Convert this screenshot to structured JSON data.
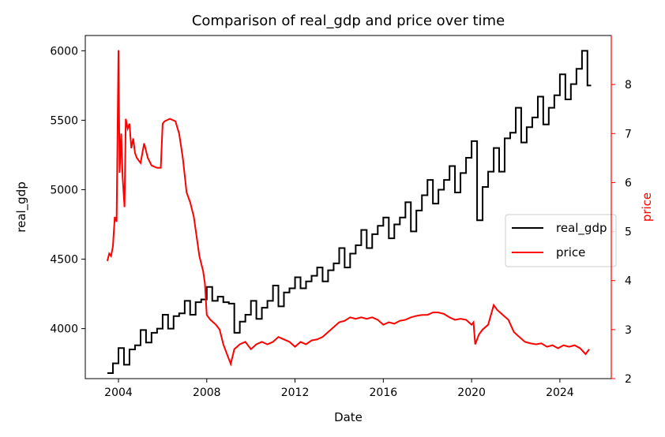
{
  "chart_data": {
    "type": "line",
    "title": "Comparison of real_gdp and price over time",
    "xlabel": "Date",
    "ylabel_left": "real_gdp",
    "ylabel_right": "price",
    "x_range": [
      "2002-07-01",
      "2026-05-01"
    ],
    "ylim_left": [
      3640,
      6110
    ],
    "ylim_right": [
      2.0,
      9.0
    ],
    "x_ticks": [
      "2004",
      "2008",
      "2012",
      "2016",
      "2020",
      "2024"
    ],
    "y_left_ticks": [
      4000,
      4500,
      5000,
      5500,
      6000
    ],
    "y_right_ticks": [
      2,
      3,
      4,
      5,
      6,
      7,
      8
    ],
    "grid": false,
    "legend_position": "center-right",
    "colors": {
      "real_gdp": "#000000",
      "price": "#ff0000",
      "right_axis": "#ff0000"
    },
    "series": [
      {
        "name": "real_gdp",
        "axis": "left",
        "color": "#000000",
        "step": true,
        "points": [
          [
            "2003-07-01",
            3680
          ],
          [
            "2003-10-01",
            3750
          ],
          [
            "2004-01-01",
            3860
          ],
          [
            "2004-04-01",
            3740
          ],
          [
            "2004-07-01",
            3850
          ],
          [
            "2004-10-01",
            3880
          ],
          [
            "2005-01-01",
            3990
          ],
          [
            "2005-04-01",
            3900
          ],
          [
            "2005-07-01",
            3970
          ],
          [
            "2005-10-01",
            4000
          ],
          [
            "2006-01-01",
            4100
          ],
          [
            "2006-04-01",
            4000
          ],
          [
            "2006-07-01",
            4090
          ],
          [
            "2006-10-01",
            4110
          ],
          [
            "2007-01-01",
            4200
          ],
          [
            "2007-04-01",
            4100
          ],
          [
            "2007-07-01",
            4190
          ],
          [
            "2007-10-01",
            4210
          ],
          [
            "2008-01-01",
            4300
          ],
          [
            "2008-04-01",
            4200
          ],
          [
            "2008-07-01",
            4230
          ],
          [
            "2008-10-01",
            4190
          ],
          [
            "2009-01-01",
            4180
          ],
          [
            "2009-04-01",
            3970
          ],
          [
            "2009-07-01",
            4050
          ],
          [
            "2009-10-01",
            4100
          ],
          [
            "2010-01-01",
            4200
          ],
          [
            "2010-04-01",
            4070
          ],
          [
            "2010-07-01",
            4150
          ],
          [
            "2010-10-01",
            4200
          ],
          [
            "2011-01-01",
            4310
          ],
          [
            "2011-04-01",
            4160
          ],
          [
            "2011-07-01",
            4260
          ],
          [
            "2011-10-01",
            4290
          ],
          [
            "2012-01-01",
            4370
          ],
          [
            "2012-04-01",
            4290
          ],
          [
            "2012-07-01",
            4340
          ],
          [
            "2012-10-01",
            4380
          ],
          [
            "2013-01-01",
            4440
          ],
          [
            "2013-04-01",
            4340
          ],
          [
            "2013-07-01",
            4420
          ],
          [
            "2013-10-01",
            4470
          ],
          [
            "2014-01-01",
            4580
          ],
          [
            "2014-04-01",
            4440
          ],
          [
            "2014-07-01",
            4540
          ],
          [
            "2014-10-01",
            4600
          ],
          [
            "2015-01-01",
            4710
          ],
          [
            "2015-04-01",
            4580
          ],
          [
            "2015-07-01",
            4680
          ],
          [
            "2015-10-01",
            4740
          ],
          [
            "2016-01-01",
            4800
          ],
          [
            "2016-04-01",
            4650
          ],
          [
            "2016-07-01",
            4750
          ],
          [
            "2016-10-01",
            4800
          ],
          [
            "2017-01-01",
            4910
          ],
          [
            "2017-04-01",
            4700
          ],
          [
            "2017-07-01",
            4850
          ],
          [
            "2017-10-01",
            4960
          ],
          [
            "2018-01-01",
            5070
          ],
          [
            "2018-04-01",
            4900
          ],
          [
            "2018-07-01",
            5000
          ],
          [
            "2018-10-01",
            5070
          ],
          [
            "2019-01-01",
            5170
          ],
          [
            "2019-04-01",
            4980
          ],
          [
            "2019-07-01",
            5120
          ],
          [
            "2019-10-01",
            5230
          ],
          [
            "2020-01-01",
            5350
          ],
          [
            "2020-04-01",
            4780
          ],
          [
            "2020-07-01",
            5020
          ],
          [
            "2020-10-01",
            5130
          ],
          [
            "2021-01-01",
            5300
          ],
          [
            "2021-04-01",
            5130
          ],
          [
            "2021-07-01",
            5370
          ],
          [
            "2021-10-01",
            5410
          ],
          [
            "2022-01-01",
            5590
          ],
          [
            "2022-04-01",
            5340
          ],
          [
            "2022-07-01",
            5450
          ],
          [
            "2022-10-01",
            5520
          ],
          [
            "2023-01-01",
            5670
          ],
          [
            "2023-04-01",
            5470
          ],
          [
            "2023-07-01",
            5590
          ],
          [
            "2023-10-01",
            5680
          ],
          [
            "2024-01-01",
            5830
          ],
          [
            "2024-04-01",
            5650
          ],
          [
            "2024-07-01",
            5760
          ],
          [
            "2024-10-01",
            5870
          ],
          [
            "2025-01-01",
            6000
          ],
          [
            "2025-04-01",
            5750
          ],
          [
            "2025-06-01",
            5750
          ]
        ]
      },
      {
        "name": "price",
        "axis": "right",
        "color": "#ff0000",
        "step": false,
        "points": [
          [
            "2003-07-01",
            4.4
          ],
          [
            "2003-08-01",
            4.55
          ],
          [
            "2003-09-01",
            4.5
          ],
          [
            "2003-10-01",
            4.7
          ],
          [
            "2003-11-01",
            5.3
          ],
          [
            "2003-12-01",
            5.2
          ],
          [
            "2004-01-01",
            8.7
          ],
          [
            "2004-01-20",
            6.2
          ],
          [
            "2004-02-15",
            7.0
          ],
          [
            "2004-03-10",
            6.1
          ],
          [
            "2004-04-10",
            5.5
          ],
          [
            "2004-05-01",
            7.3
          ],
          [
            "2004-06-01",
            7.1
          ],
          [
            "2004-07-01",
            7.2
          ],
          [
            "2004-08-01",
            6.7
          ],
          [
            "2004-09-01",
            6.9
          ],
          [
            "2004-10-01",
            6.6
          ],
          [
            "2004-11-01",
            6.5
          ],
          [
            "2005-01-01",
            6.4
          ],
          [
            "2005-03-01",
            6.8
          ],
          [
            "2005-05-01",
            6.5
          ],
          [
            "2005-07-01",
            6.35
          ],
          [
            "2005-10-01",
            6.3
          ],
          [
            "2005-12-01",
            6.3
          ],
          [
            "2006-01-01",
            7.2
          ],
          [
            "2006-02-01",
            7.25
          ],
          [
            "2006-05-01",
            7.3
          ],
          [
            "2006-08-01",
            7.25
          ],
          [
            "2006-10-01",
            7.0
          ],
          [
            "2006-12-01",
            6.5
          ],
          [
            "2007-02-01",
            5.8
          ],
          [
            "2007-04-01",
            5.6
          ],
          [
            "2007-06-01",
            5.3
          ],
          [
            "2007-09-01",
            4.5
          ],
          [
            "2007-11-01",
            4.2
          ],
          [
            "2007-12-01",
            3.95
          ],
          [
            "2008-01-01",
            3.3
          ],
          [
            "2008-03-01",
            3.2
          ],
          [
            "2008-06-01",
            3.1
          ],
          [
            "2008-08-01",
            3.0
          ],
          [
            "2008-10-01",
            2.7
          ],
          [
            "2008-12-01",
            2.5
          ],
          [
            "2009-02-01",
            2.3
          ],
          [
            "2009-04-01",
            2.6
          ],
          [
            "2009-07-01",
            2.7
          ],
          [
            "2009-10-01",
            2.75
          ],
          [
            "2010-01-01",
            2.6
          ],
          [
            "2010-04-01",
            2.7
          ],
          [
            "2010-07-01",
            2.75
          ],
          [
            "2010-10-01",
            2.7
          ],
          [
            "2011-01-01",
            2.75
          ],
          [
            "2011-04-01",
            2.85
          ],
          [
            "2011-07-01",
            2.8
          ],
          [
            "2011-10-01",
            2.75
          ],
          [
            "2012-01-01",
            2.65
          ],
          [
            "2012-04-01",
            2.75
          ],
          [
            "2012-07-01",
            2.7
          ],
          [
            "2012-10-01",
            2.78
          ],
          [
            "2013-01-01",
            2.8
          ],
          [
            "2013-04-01",
            2.85
          ],
          [
            "2013-07-01",
            2.95
          ],
          [
            "2013-10-01",
            3.05
          ],
          [
            "2014-01-01",
            3.15
          ],
          [
            "2014-04-01",
            3.18
          ],
          [
            "2014-07-01",
            3.25
          ],
          [
            "2014-10-01",
            3.22
          ],
          [
            "2015-01-01",
            3.25
          ],
          [
            "2015-04-01",
            3.22
          ],
          [
            "2015-07-01",
            3.25
          ],
          [
            "2015-10-01",
            3.2
          ],
          [
            "2016-01-01",
            3.1
          ],
          [
            "2016-04-01",
            3.15
          ],
          [
            "2016-07-01",
            3.12
          ],
          [
            "2016-10-01",
            3.18
          ],
          [
            "2017-01-01",
            3.2
          ],
          [
            "2017-04-01",
            3.25
          ],
          [
            "2017-07-01",
            3.28
          ],
          [
            "2017-10-01",
            3.3
          ],
          [
            "2018-01-01",
            3.3
          ],
          [
            "2018-04-01",
            3.35
          ],
          [
            "2018-07-01",
            3.35
          ],
          [
            "2018-10-01",
            3.32
          ],
          [
            "2019-01-01",
            3.25
          ],
          [
            "2019-04-01",
            3.2
          ],
          [
            "2019-07-01",
            3.22
          ],
          [
            "2019-10-01",
            3.2
          ],
          [
            "2020-01-01",
            3.1
          ],
          [
            "2020-02-01",
            3.15
          ],
          [
            "2020-03-01",
            2.7
          ],
          [
            "2020-05-01",
            2.9
          ],
          [
            "2020-07-01",
            3.0
          ],
          [
            "2020-10-01",
            3.1
          ],
          [
            "2021-01-01",
            3.5
          ],
          [
            "2021-03-01",
            3.4
          ],
          [
            "2021-06-01",
            3.3
          ],
          [
            "2021-09-01",
            3.2
          ],
          [
            "2021-12-01",
            2.95
          ],
          [
            "2022-03-01",
            2.85
          ],
          [
            "2022-06-01",
            2.75
          ],
          [
            "2022-09-01",
            2.72
          ],
          [
            "2022-12-01",
            2.7
          ],
          [
            "2023-03-01",
            2.72
          ],
          [
            "2023-06-01",
            2.65
          ],
          [
            "2023-09-01",
            2.68
          ],
          [
            "2023-12-01",
            2.62
          ],
          [
            "2024-03-01",
            2.68
          ],
          [
            "2024-06-01",
            2.65
          ],
          [
            "2024-09-01",
            2.68
          ],
          [
            "2024-12-01",
            2.62
          ],
          [
            "2025-03-01",
            2.5
          ],
          [
            "2025-04-01",
            2.55
          ],
          [
            "2025-05-01",
            2.6
          ]
        ]
      }
    ]
  }
}
